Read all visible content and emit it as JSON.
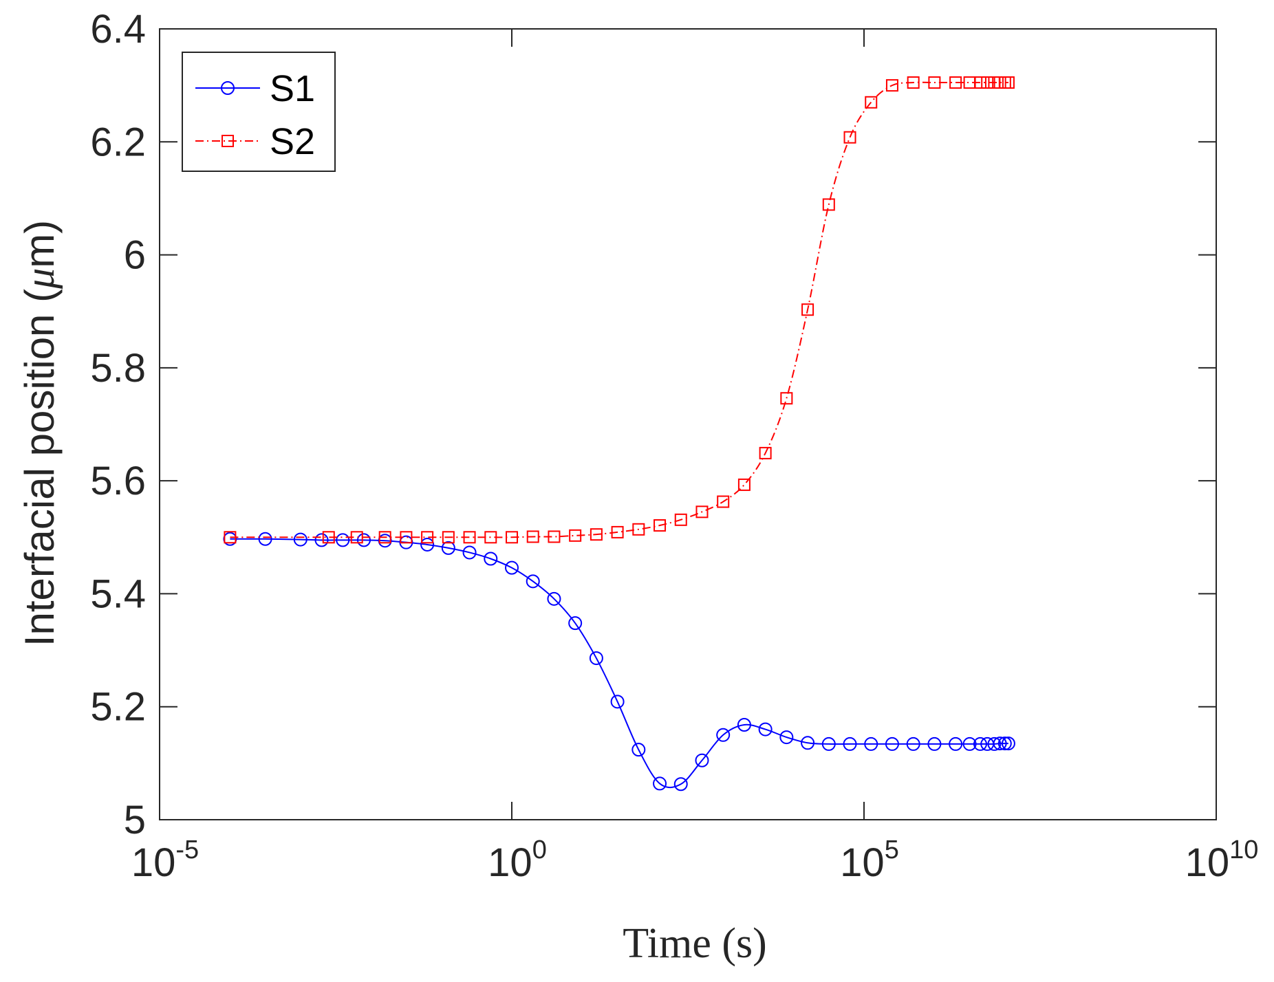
{
  "chart_data": {
    "type": "line",
    "xscale": "log",
    "x_ticks": [
      {
        "base": "10",
        "exp": "-5",
        "value": 1e-05
      },
      {
        "base": "10",
        "exp": "0",
        "value": 1
      },
      {
        "base": "10",
        "exp": "5",
        "value": 100000
      },
      {
        "base": "10",
        "exp": "10",
        "value": 10000000000
      }
    ],
    "y_ticks": [
      "5",
      "5.2",
      "5.4",
      "5.6",
      "5.8",
      "6",
      "6.2",
      "6.4"
    ],
    "xlim": [
      1e-05,
      10000000000
    ],
    "ylim": [
      5,
      6.4
    ],
    "xlabel": "Time (s)",
    "ylabel_main": "Interfacial position (",
    "ylabel_mu": "μ",
    "ylabel_unit": "m)",
    "legend_position": "top-left",
    "series": [
      {
        "name": "S1",
        "color": "#0000ff",
        "marker": "circle",
        "linestyle": "solid",
        "x_log10": [
          -4,
          -3.5,
          -3,
          -2.7,
          -2.4,
          -2.1,
          -1.8,
          -1.5,
          -1.2,
          -0.9,
          -0.6,
          -0.3,
          0,
          0.3,
          0.6,
          0.9,
          1.2,
          1.5,
          1.8,
          2.1,
          2.4,
          2.7,
          3,
          3.3,
          3.6,
          3.9,
          4.2,
          4.5,
          4.8,
          5.1,
          5.4,
          5.7,
          6,
          6.3,
          6.5,
          6.65,
          6.75,
          6.85,
          6.93,
          7,
          7.05
        ],
        "y": [
          5.497,
          5.497,
          5.496,
          5.495,
          5.495,
          5.495,
          5.494,
          5.491,
          5.487,
          5.481,
          5.473,
          5.462,
          5.446,
          5.422,
          5.391,
          5.348,
          5.286,
          5.209,
          5.124,
          5.064,
          5.063,
          5.105,
          5.15,
          5.168,
          5.16,
          5.146,
          5.136,
          5.134,
          5.134,
          5.134,
          5.134,
          5.134,
          5.134,
          5.134,
          5.134,
          5.134,
          5.134,
          5.134,
          5.135,
          5.135,
          5.135
        ]
      },
      {
        "name": "S2",
        "color": "#ff0000",
        "marker": "square",
        "linestyle": "dashdot",
        "x_log10": [
          -4,
          -2.6,
          -2.2,
          -1.8,
          -1.5,
          -1.2,
          -0.9,
          -0.6,
          -0.3,
          0,
          0.3,
          0.6,
          0.9,
          1.2,
          1.5,
          1.8,
          2.1,
          2.4,
          2.7,
          3,
          3.3,
          3.6,
          3.9,
          4.2,
          4.5,
          4.8,
          5.1,
          5.4,
          5.7,
          6,
          6.3,
          6.5,
          6.65,
          6.75,
          6.85,
          6.93,
          7,
          7.05
        ],
        "y": [
          5.5,
          5.5,
          5.5,
          5.5,
          5.5,
          5.5,
          5.5,
          5.5,
          5.5,
          5.5,
          5.501,
          5.501,
          5.503,
          5.505,
          5.509,
          5.514,
          5.521,
          5.531,
          5.545,
          5.563,
          5.593,
          5.649,
          5.746,
          5.903,
          6.089,
          6.208,
          6.27,
          6.3,
          6.305,
          6.305,
          6.305,
          6.305,
          6.305,
          6.305,
          6.305,
          6.305,
          6.305,
          6.305
        ]
      }
    ]
  }
}
